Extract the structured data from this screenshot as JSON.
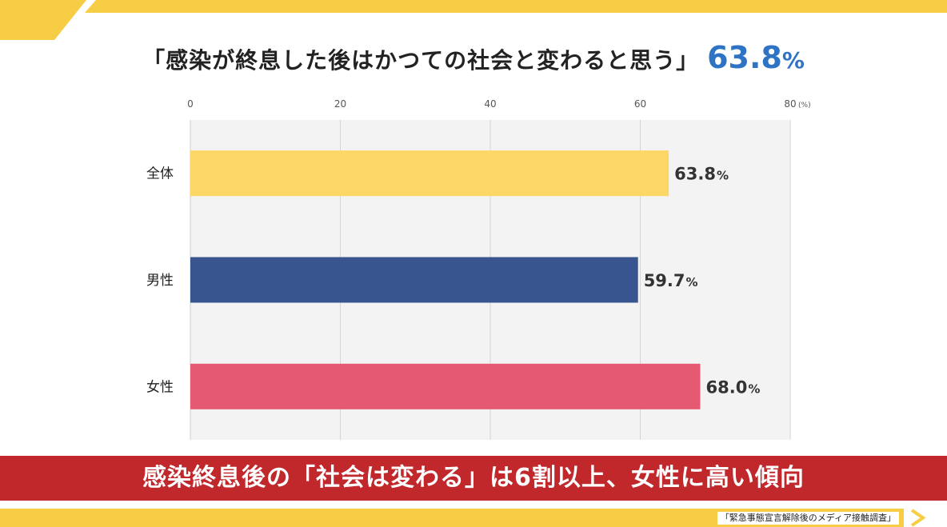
{
  "headline": {
    "text": "「感染が終息した後はかつての社会と変わると思う」",
    "value": "63.8",
    "unit": "%"
  },
  "chart_data": {
    "type": "bar",
    "orientation": "horizontal",
    "categories": [
      "全体",
      "男性",
      "女性"
    ],
    "values": [
      63.8,
      59.7,
      68.0
    ],
    "value_labels": [
      "63.8",
      "59.7",
      "68.0"
    ],
    "value_unit": "%",
    "colors": [
      "#fcd766",
      "#38558f",
      "#e55a72"
    ],
    "xlim": [
      0,
      80
    ],
    "xticks": [
      "0",
      "20",
      "40",
      "60",
      "80"
    ],
    "xunit": "(%)",
    "grid": true,
    "axis_position": "top"
  },
  "banner": {
    "text": "感染終息後の「社会は変わる」は6割以上、女性に高い傾向"
  },
  "source": {
    "text": "「緊急事態宣言解除後のメディア接触調査」"
  },
  "theme": {
    "accent_yellow": "#f7cd45",
    "accent_red": "#c0282c",
    "accent_blue": "#2f73c4"
  }
}
